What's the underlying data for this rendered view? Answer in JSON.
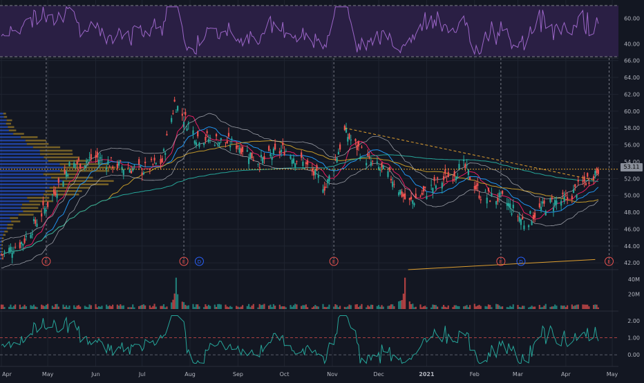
{
  "theme": {
    "background": "#131722",
    "grid": "#1f2430",
    "axis_text": "#b2b5be",
    "rsi_band_fill": "#2a1f44",
    "rsi_line": "#9c66c8",
    "up_candle": "#26a69a",
    "down_candle": "#ef5350",
    "volume_orange": "#c49a2a",
    "macd_line": "#26a69a",
    "earnings_color": "#ef5350",
    "dividend_color": "#2962ff",
    "current_price_line": "#e0a030",
    "trendline_color": "#e0a030",
    "sma_fast": "#e91e63",
    "sma_mid": "#2196f3",
    "sma_slow": "#c49a2a",
    "sma_long": "#26a69a",
    "bollinger": "#d1d4dc"
  },
  "current_price_label": "53.11",
  "events": {
    "earnings_label": "E",
    "dividend_label": "D"
  },
  "chart_data": {
    "type": "candlestick",
    "ticker": "",
    "x_axis": {
      "labels": [
        "Apr",
        "May",
        "Jun",
        "Jul",
        "Aug",
        "Sep",
        "Oct",
        "Nov",
        "Dec",
        "2021",
        "Feb",
        "Mar",
        "Apr",
        "May"
      ]
    },
    "price_axis": {
      "labels": [
        "66.00",
        "64.00",
        "62.00",
        "60.00",
        "58.00",
        "56.00",
        "54.00",
        "52.00",
        "50.00",
        "48.00",
        "46.00",
        "44.00",
        "42.00"
      ],
      "ylim": [
        41.2,
        66.3
      ]
    },
    "rsi_axis": {
      "labels": [
        "60.00",
        "40.00"
      ],
      "ylim": [
        30,
        70
      ],
      "band": [
        30,
        70
      ]
    },
    "volume_axis": {
      "labels": [
        "40M",
        "20M"
      ],
      "ylim": [
        0,
        50
      ]
    },
    "macd_axis": {
      "labels": [
        "2.00",
        "1.00",
        "0.00"
      ],
      "ylim": [
        -0.6,
        2.4
      ]
    },
    "close_series": [
      {
        "date": "2020-04-01",
        "close": 43.0
      },
      {
        "date": "2020-04-15",
        "close": 44.5
      },
      {
        "date": "2020-05-01",
        "close": 49.0
      },
      {
        "date": "2020-05-15",
        "close": 53.5
      },
      {
        "date": "2020-06-01",
        "close": 54.5
      },
      {
        "date": "2020-06-15",
        "close": 53.5
      },
      {
        "date": "2020-07-01",
        "close": 53.0
      },
      {
        "date": "2020-07-14",
        "close": 54.0
      },
      {
        "date": "2020-07-22",
        "close": 61.0
      },
      {
        "date": "2020-08-05",
        "close": 57.0
      },
      {
        "date": "2020-08-20",
        "close": 56.5
      },
      {
        "date": "2020-09-01",
        "close": 56.0
      },
      {
        "date": "2020-09-15",
        "close": 54.0
      },
      {
        "date": "2020-10-01",
        "close": 55.5
      },
      {
        "date": "2020-10-15",
        "close": 53.5
      },
      {
        "date": "2020-10-28",
        "close": 51.0
      },
      {
        "date": "2020-11-09",
        "close": 57.5
      },
      {
        "date": "2020-11-25",
        "close": 54.0
      },
      {
        "date": "2020-12-10",
        "close": 52.0
      },
      {
        "date": "2020-12-20",
        "close": 49.0
      },
      {
        "date": "2021-01-05",
        "close": 51.0
      },
      {
        "date": "2021-01-25",
        "close": 53.5
      },
      {
        "date": "2021-02-05",
        "close": 50.0
      },
      {
        "date": "2021-02-20",
        "close": 49.5
      },
      {
        "date": "2021-03-05",
        "close": 46.8
      },
      {
        "date": "2021-03-20",
        "close": 49.0
      },
      {
        "date": "2021-04-01",
        "close": 49.5
      },
      {
        "date": "2021-04-22",
        "close": 53.11
      }
    ],
    "volume_spikes": [
      {
        "date": "2020-07-23",
        "volume": 42
      },
      {
        "date": "2020-12-18",
        "volume": 42
      }
    ],
    "earnings_dates": [
      "2020-04-30",
      "2020-07-28",
      "2020-11-02",
      "2021-02-18",
      "2021-04-29"
    ],
    "dividend_dates": [
      "2020-08-07",
      "2021-03-03"
    ],
    "current_price": 53.11
  }
}
